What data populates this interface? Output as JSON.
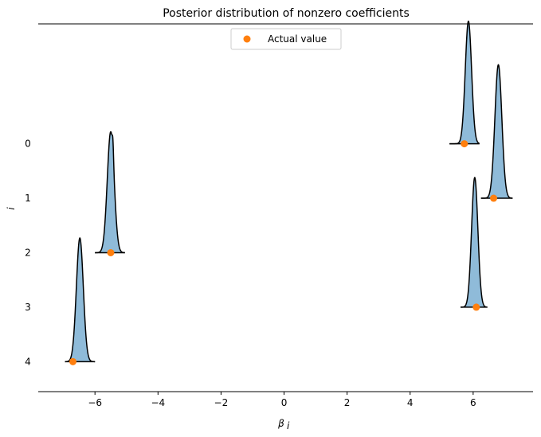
{
  "chart_data": {
    "type": "ridgeline",
    "title": "Posterior distribution of nonzero coefficients",
    "xlabel": "β",
    "xlabel_sub": "i",
    "ylabel": "i",
    "xlim": [
      -7.8,
      7.9
    ],
    "x_ticks": [
      -6,
      -4,
      -2,
      0,
      2,
      4,
      6
    ],
    "x_tick_labels": [
      "−6",
      "−4",
      "−2",
      "0",
      "2",
      "4",
      "6"
    ],
    "y_ticks": [
      0,
      1,
      2,
      3,
      4
    ],
    "y_tick_labels": [
      "0",
      "1",
      "2",
      "3",
      "4"
    ],
    "ylim_inverted": [
      -2.2,
      4.55
    ],
    "grid": false,
    "legend": {
      "placement": "top-center",
      "entries": [
        {
          "label": "Actual value",
          "marker": "circle",
          "color": "#ff7f0e"
        }
      ]
    },
    "colors": {
      "fill": "#1f77b4",
      "fill_opacity": 0.5,
      "outline": "#000000",
      "marker": "#ff7f0e"
    },
    "series": [
      {
        "i": 0,
        "baseline_range": [
          5.25,
          6.2
        ],
        "components": [
          {
            "mu": 5.85,
            "sigma": 0.1,
            "peak": 2.25
          }
        ],
        "actual_value": 5.72
      },
      {
        "i": 1,
        "baseline_range": [
          6.25,
          7.25
        ],
        "components": [
          {
            "mu": 6.8,
            "sigma": 0.11,
            "peak": 2.45
          }
        ],
        "actual_value": 6.65
      },
      {
        "i": 2,
        "baseline_range": [
          -6.0,
          -5.05
        ],
        "components": [
          {
            "mu": -5.5,
            "sigma": 0.11,
            "peak": 2.22
          },
          {
            "mu": -5.43,
            "sigma": 0.02,
            "peak": 0.26
          }
        ],
        "actual_value": -5.5
      },
      {
        "i": 3,
        "baseline_range": [
          5.6,
          6.45
        ],
        "components": [
          {
            "mu": 6.05,
            "sigma": 0.1,
            "peak": 2.38
          }
        ],
        "actual_value": 6.1
      },
      {
        "i": 4,
        "baseline_range": [
          -6.95,
          -6.0
        ],
        "components": [
          {
            "mu": -6.48,
            "sigma": 0.11,
            "peak": 2.27
          }
        ],
        "actual_value": -6.7
      }
    ]
  }
}
